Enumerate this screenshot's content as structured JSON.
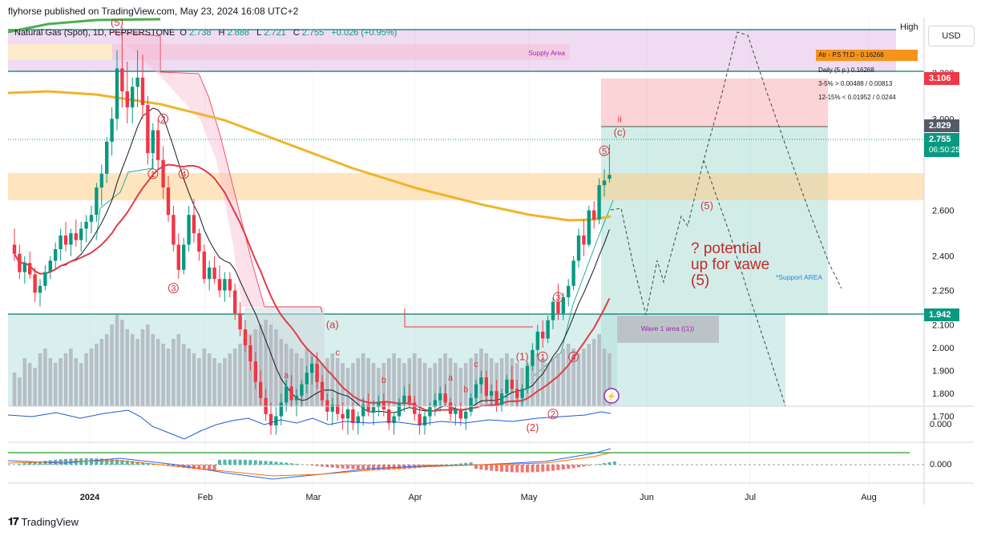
{
  "header": {
    "publisher": "flyhorse published on TradingView.com, May 23, 2024 16:08 UTC+2"
  },
  "legend": {
    "symbol": "Natural Gas (Spot), 1D, PEPPERSTONE",
    "o_label": "O",
    "o": "2.738",
    "h_label": "H",
    "h": "2.888",
    "l_label": "L",
    "l": "2.721",
    "c_label": "C",
    "c": "2.755",
    "change": "+0.026 (+0.95%)"
  },
  "currency_button": "USD",
  "high_label": "High",
  "indicator_box": {
    "atr": "Atr - P.5 Tf.D - 0.16268",
    "daily": "Daily (5 p.) 0.16268",
    "row1": "3-5% > 0.00488 / 0.00813",
    "row2": "12-15% < 0.01952 / 0.0244"
  },
  "price_boxes": {
    "red": "3.106",
    "dark": "2.829",
    "current": "2.755",
    "countdown": "06:50:25",
    "teal": "1.942"
  },
  "zones": {
    "supply": "Supply Area",
    "support": "*Support AREA",
    "wave1": "Wave 1 area ((1))"
  },
  "annotation": {
    "line1": "? potential",
    "line2": "up for vawe",
    "line3": "(5)"
  },
  "brand": "TradingView",
  "colors": {
    "up": "#089981",
    "down": "#f23645",
    "ema_yellow": "#f0b429",
    "ma_red": "#e03c4a",
    "label_red": "#d0343c"
  },
  "chart_data": {
    "type": "candlestick",
    "y_axis_ticks": [
      "3.200",
      "3.000",
      "2.800",
      "2.600",
      "2.400",
      "2.250",
      "2.100",
      "2.000",
      "1.900",
      "1.800",
      "1.700"
    ],
    "x_axis_ticks": [
      "2024",
      "Feb",
      "Mar",
      "Apr",
      "May",
      "Jun",
      "Jul",
      "Aug"
    ],
    "osc_ticks": [
      "0.000",
      "0.000"
    ],
    "ylim": [
      1.62,
      3.4
    ],
    "candles": [
      [
        2.45,
        2.52,
        2.38,
        2.41
      ],
      [
        2.41,
        2.45,
        2.3,
        2.33
      ],
      [
        2.33,
        2.4,
        2.28,
        2.37
      ],
      [
        2.37,
        2.42,
        2.3,
        2.32
      ],
      [
        2.32,
        2.35,
        2.2,
        2.24
      ],
      [
        2.24,
        2.3,
        2.18,
        2.27
      ],
      [
        2.27,
        2.36,
        2.25,
        2.33
      ],
      [
        2.33,
        2.4,
        2.3,
        2.38
      ],
      [
        2.38,
        2.46,
        2.34,
        2.43
      ],
      [
        2.43,
        2.52,
        2.38,
        2.49
      ],
      [
        2.49,
        2.55,
        2.42,
        2.45
      ],
      [
        2.45,
        2.52,
        2.4,
        2.5
      ],
      [
        2.5,
        2.56,
        2.44,
        2.47
      ],
      [
        2.47,
        2.55,
        2.42,
        2.52
      ],
      [
        2.52,
        2.58,
        2.46,
        2.55
      ],
      [
        2.55,
        2.62,
        2.5,
        2.58
      ],
      [
        2.58,
        2.72,
        2.55,
        2.7
      ],
      [
        2.7,
        2.8,
        2.62,
        2.76
      ],
      [
        2.76,
        2.92,
        2.72,
        2.9
      ],
      [
        2.9,
        3.05,
        2.84,
        3.0
      ],
      [
        3.0,
        3.3,
        2.95,
        3.22
      ],
      [
        3.22,
        3.4,
        3.05,
        3.12
      ],
      [
        3.12,
        3.25,
        2.98,
        3.05
      ],
      [
        3.05,
        3.18,
        2.98,
        3.14
      ],
      [
        3.14,
        3.3,
        3.05,
        3.18
      ],
      [
        3.18,
        3.28,
        3.0,
        3.06
      ],
      [
        3.06,
        3.1,
        2.8,
        2.85
      ],
      [
        2.85,
        2.98,
        2.78,
        2.95
      ],
      [
        2.95,
        3.0,
        2.78,
        2.82
      ],
      [
        2.82,
        2.88,
        2.65,
        2.7
      ],
      [
        2.7,
        2.75,
        2.55,
        2.58
      ],
      [
        2.58,
        2.62,
        2.42,
        2.45
      ],
      [
        2.45,
        2.5,
        2.3,
        2.34
      ],
      [
        2.34,
        2.48,
        2.32,
        2.45
      ],
      [
        2.45,
        2.62,
        2.42,
        2.58
      ],
      [
        2.58,
        2.65,
        2.46,
        2.5
      ],
      [
        2.5,
        2.52,
        2.38,
        2.42
      ],
      [
        2.42,
        2.45,
        2.28,
        2.3
      ],
      [
        2.3,
        2.38,
        2.25,
        2.35
      ],
      [
        2.35,
        2.4,
        2.28,
        2.3
      ],
      [
        2.3,
        2.36,
        2.22,
        2.25
      ],
      [
        2.25,
        2.33,
        2.2,
        2.3
      ],
      [
        2.3,
        2.33,
        2.22,
        2.25
      ],
      [
        2.25,
        2.28,
        2.12,
        2.15
      ],
      [
        2.15,
        2.2,
        2.05,
        2.08
      ],
      [
        2.08,
        2.12,
        1.98,
        2.01
      ],
      [
        2.01,
        2.05,
        1.9,
        1.94
      ],
      [
        1.94,
        1.98,
        1.82,
        1.85
      ],
      [
        1.85,
        1.9,
        1.75,
        1.78
      ],
      [
        1.78,
        1.82,
        1.68,
        1.71
      ],
      [
        1.71,
        1.76,
        1.62,
        1.66
      ],
      [
        1.66,
        1.74,
        1.62,
        1.7
      ],
      [
        1.7,
        1.8,
        1.66,
        1.76
      ],
      [
        1.76,
        1.86,
        1.72,
        1.83
      ],
      [
        1.83,
        1.88,
        1.74,
        1.77
      ],
      [
        1.77,
        1.82,
        1.7,
        1.79
      ],
      [
        1.79,
        1.86,
        1.74,
        1.84
      ],
      [
        1.84,
        1.92,
        1.8,
        1.89
      ],
      [
        1.89,
        1.96,
        1.84,
        1.93
      ],
      [
        1.93,
        1.98,
        1.82,
        1.85
      ],
      [
        1.85,
        1.88,
        1.74,
        1.77
      ],
      [
        1.77,
        1.8,
        1.68,
        1.72
      ],
      [
        1.72,
        1.78,
        1.66,
        1.75
      ],
      [
        1.75,
        1.8,
        1.68,
        1.71
      ],
      [
        1.71,
        1.76,
        1.64,
        1.69
      ],
      [
        1.69,
        1.74,
        1.62,
        1.73
      ],
      [
        1.73,
        1.76,
        1.64,
        1.67
      ],
      [
        1.67,
        1.72,
        1.62,
        1.7
      ],
      [
        1.7,
        1.78,
        1.66,
        1.75
      ],
      [
        1.75,
        1.8,
        1.7,
        1.72
      ],
      [
        1.72,
        1.77,
        1.66,
        1.74
      ],
      [
        1.74,
        1.79,
        1.7,
        1.76
      ],
      [
        1.76,
        1.8,
        1.7,
        1.73
      ],
      [
        1.73,
        1.76,
        1.64,
        1.67
      ],
      [
        1.67,
        1.72,
        1.62,
        1.7
      ],
      [
        1.7,
        1.78,
        1.68,
        1.76
      ],
      [
        1.76,
        1.83,
        1.72,
        1.79
      ],
      [
        1.79,
        1.84,
        1.74,
        1.76
      ],
      [
        1.76,
        1.79,
        1.68,
        1.71
      ],
      [
        1.71,
        1.74,
        1.62,
        1.66
      ],
      [
        1.66,
        1.72,
        1.62,
        1.7
      ],
      [
        1.7,
        1.76,
        1.66,
        1.74
      ],
      [
        1.74,
        1.8,
        1.7,
        1.77
      ],
      [
        1.77,
        1.83,
        1.72,
        1.8
      ],
      [
        1.8,
        1.84,
        1.74,
        1.76
      ],
      [
        1.76,
        1.78,
        1.68,
        1.71
      ],
      [
        1.71,
        1.75,
        1.66,
        1.73
      ],
      [
        1.73,
        1.76,
        1.66,
        1.69
      ],
      [
        1.69,
        1.74,
        1.64,
        1.72
      ],
      [
        1.72,
        1.8,
        1.7,
        1.78
      ],
      [
        1.78,
        1.86,
        1.76,
        1.84
      ],
      [
        1.84,
        1.9,
        1.8,
        1.87
      ],
      [
        1.87,
        1.9,
        1.76,
        1.79
      ],
      [
        1.79,
        1.84,
        1.74,
        1.81
      ],
      [
        1.81,
        1.86,
        1.72,
        1.75
      ],
      [
        1.75,
        1.82,
        1.72,
        1.8
      ],
      [
        1.8,
        1.88,
        1.78,
        1.86
      ],
      [
        1.86,
        1.92,
        1.8,
        1.82
      ],
      [
        1.82,
        1.86,
        1.74,
        1.78
      ],
      [
        1.78,
        1.84,
        1.74,
        1.82
      ],
      [
        1.82,
        1.94,
        1.8,
        1.92
      ],
      [
        1.92,
        2.02,
        1.9,
        1.99
      ],
      [
        1.99,
        2.1,
        1.96,
        2.07
      ],
      [
        2.07,
        2.12,
        2.0,
        2.04
      ],
      [
        2.04,
        2.14,
        2.02,
        2.12
      ],
      [
        2.12,
        2.22,
        2.08,
        2.2
      ],
      [
        2.2,
        2.28,
        2.12,
        2.15
      ],
      [
        2.15,
        2.24,
        2.12,
        2.22
      ],
      [
        2.22,
        2.3,
        2.18,
        2.27
      ],
      [
        2.27,
        2.4,
        2.25,
        2.38
      ],
      [
        2.38,
        2.52,
        2.35,
        2.49
      ],
      [
        2.49,
        2.56,
        2.4,
        2.45
      ],
      [
        2.45,
        2.62,
        2.44,
        2.6
      ],
      [
        2.6,
        2.64,
        2.52,
        2.56
      ],
      [
        2.56,
        2.74,
        2.54,
        2.71
      ],
      [
        2.71,
        2.78,
        2.66,
        2.73
      ],
      [
        2.738,
        2.888,
        2.721,
        2.755
      ]
    ],
    "volume": [
      0.35,
      0.3,
      0.5,
      0.45,
      0.4,
      0.55,
      0.6,
      0.5,
      0.45,
      0.5,
      0.55,
      0.6,
      0.5,
      0.45,
      0.55,
      0.6,
      0.65,
      0.7,
      0.75,
      0.85,
      0.95,
      0.9,
      0.8,
      0.75,
      0.7,
      0.8,
      0.85,
      0.75,
      0.7,
      0.65,
      0.6,
      0.7,
      0.75,
      0.65,
      0.6,
      0.55,
      0.5,
      0.6,
      0.55,
      0.5,
      0.45,
      0.5,
      0.55,
      0.6,
      0.65,
      0.7,
      0.75,
      0.8,
      0.85,
      0.9,
      0.85,
      0.8,
      0.7,
      0.65,
      0.6,
      0.55,
      0.5,
      0.6,
      0.55,
      0.5,
      0.45,
      0.5,
      0.55,
      0.5,
      0.45,
      0.4,
      0.45,
      0.5,
      0.55,
      0.5,
      0.45,
      0.4,
      0.45,
      0.5,
      0.55,
      0.5,
      0.45,
      0.5,
      0.55,
      0.5,
      0.45,
      0.4,
      0.45,
      0.5,
      0.55,
      0.5,
      0.45,
      0.4,
      0.45,
      0.5,
      0.55,
      0.6,
      0.55,
      0.5,
      0.45,
      0.5,
      0.55,
      0.5,
      0.45,
      0.4,
      0.45,
      0.5,
      0.55,
      0.5,
      0.45,
      0.5,
      0.55,
      0.6,
      0.65,
      0.6,
      0.55,
      0.6,
      0.65,
      0.7,
      0.75,
      0.6,
      0.55
    ],
    "wave_labels": [
      {
        "t": "(5)",
        "i": 20,
        "p": 3.42
      },
      {
        "t": "2",
        "i": 29,
        "p": 3.0
      },
      {
        "t": "1",
        "i": 27,
        "p": 2.76
      },
      {
        "t": "4",
        "i": 33,
        "p": 2.76
      },
      {
        "t": "3",
        "i": 31,
        "p": 2.26
      },
      {
        "t": "(a)",
        "i": 62,
        "p": 2.1
      },
      {
        "t": "c",
        "i": 63,
        "p": 1.98
      },
      {
        "t": "a",
        "i": 53,
        "p": 1.88
      },
      {
        "t": "b",
        "i": 72,
        "p": 1.86
      },
      {
        "t": "a",
        "i": 85,
        "p": 1.87
      },
      {
        "t": "b",
        "i": 88,
        "p": 1.82
      },
      {
        "t": "c",
        "i": 90,
        "p": 1.93
      },
      {
        "t": "(1)",
        "i": 99,
        "p": 1.96
      },
      {
        "t": "1",
        "i": 103,
        "p": 1.96
      },
      {
        "t": "4",
        "i": 109,
        "p": 1.96
      },
      {
        "t": "3",
        "i": 106,
        "p": 2.22
      },
      {
        "t": "5",
        "i": 115,
        "p": 2.86
      },
      {
        "t": "(c)",
        "i": 118,
        "p": 2.94
      },
      {
        "t": "ii",
        "i": 118,
        "p": 3.0
      },
      {
        "t": "2",
        "i": 105,
        "p": 1.71
      },
      {
        "t": "(2)",
        "i": 101,
        "p": 1.65
      },
      {
        "t": "(5)",
        "i": 135,
        "p": 2.62
      }
    ]
  }
}
